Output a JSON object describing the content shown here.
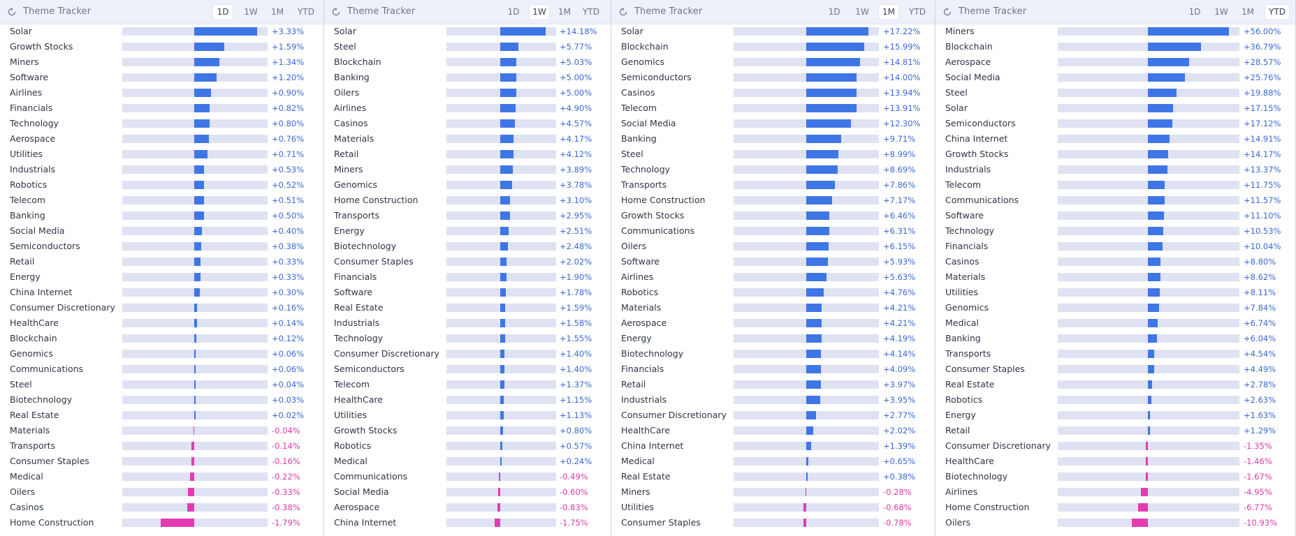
{
  "colors": {
    "positive_bar": "#3e76e6",
    "negative_bar": "#e33cb1",
    "positive_text": "#3a68d6",
    "negative_text": "#db3aa8",
    "track": "#dfe2f2",
    "header_bg": "#eef0fa"
  },
  "panels": [
    {
      "title": "Theme Tracker",
      "icon": "refresh-icon",
      "tabs": [
        "1D",
        "1W",
        "1M",
        "YTD"
      ],
      "active_tab": "1D",
      "max_abs": 3.33,
      "rows": [
        {
          "label": "Solar",
          "value": 3.33,
          "text": "+3.33%"
        },
        {
          "label": "Growth Stocks",
          "value": 1.59,
          "text": "+1.59%"
        },
        {
          "label": "Miners",
          "value": 1.34,
          "text": "+1.34%"
        },
        {
          "label": "Software",
          "value": 1.2,
          "text": "+1.20%"
        },
        {
          "label": "Airlines",
          "value": 0.9,
          "text": "+0.90%"
        },
        {
          "label": "Financials",
          "value": 0.82,
          "text": "+0.82%"
        },
        {
          "label": "Technology",
          "value": 0.8,
          "text": "+0.80%"
        },
        {
          "label": "Aerospace",
          "value": 0.76,
          "text": "+0.76%"
        },
        {
          "label": "Utilities",
          "value": 0.71,
          "text": "+0.71%"
        },
        {
          "label": "Industrials",
          "value": 0.53,
          "text": "+0.53%"
        },
        {
          "label": "Robotics",
          "value": 0.52,
          "text": "+0.52%"
        },
        {
          "label": "Telecom",
          "value": 0.51,
          "text": "+0.51%"
        },
        {
          "label": "Banking",
          "value": 0.5,
          "text": "+0.50%"
        },
        {
          "label": "Social Media",
          "value": 0.4,
          "text": "+0.40%"
        },
        {
          "label": "Semiconductors",
          "value": 0.38,
          "text": "+0.38%"
        },
        {
          "label": "Retail",
          "value": 0.33,
          "text": "+0.33%"
        },
        {
          "label": "Energy",
          "value": 0.33,
          "text": "+0.33%"
        },
        {
          "label": "China Internet",
          "value": 0.3,
          "text": "+0.30%"
        },
        {
          "label": "Consumer Discretionary",
          "value": 0.16,
          "text": "+0.16%"
        },
        {
          "label": "HealthCare",
          "value": 0.14,
          "text": "+0.14%"
        },
        {
          "label": "Blockchain",
          "value": 0.12,
          "text": "+0.12%"
        },
        {
          "label": "Genomics",
          "value": 0.06,
          "text": "+0.06%"
        },
        {
          "label": "Communications",
          "value": 0.06,
          "text": "+0.06%"
        },
        {
          "label": "Steel",
          "value": 0.04,
          "text": "+0.04%"
        },
        {
          "label": "Biotechnology",
          "value": 0.03,
          "text": "+0.03%"
        },
        {
          "label": "Real Estate",
          "value": 0.02,
          "text": "+0.02%"
        },
        {
          "label": "Materials",
          "value": -0.04,
          "text": "-0.04%"
        },
        {
          "label": "Transports",
          "value": -0.14,
          "text": "-0.14%"
        },
        {
          "label": "Consumer Staples",
          "value": -0.16,
          "text": "-0.16%"
        },
        {
          "label": "Medical",
          "value": -0.22,
          "text": "-0.22%"
        },
        {
          "label": "Oilers",
          "value": -0.33,
          "text": "-0.33%"
        },
        {
          "label": "Casinos",
          "value": -0.38,
          "text": "-0.38%"
        },
        {
          "label": "Home Construction",
          "value": -1.79,
          "text": "-1.79%"
        }
      ]
    },
    {
      "title": "Theme Tracker",
      "icon": "refresh-icon",
      "tabs": [
        "1D",
        "1W",
        "1M",
        "YTD"
      ],
      "active_tab": "1W",
      "max_abs": 14.18,
      "rows": [
        {
          "label": "Solar",
          "value": 14.18,
          "text": "+14.18%"
        },
        {
          "label": "Steel",
          "value": 5.77,
          "text": "+5.77%"
        },
        {
          "label": "Blockchain",
          "value": 5.03,
          "text": "+5.03%"
        },
        {
          "label": "Banking",
          "value": 5.0,
          "text": "+5.00%"
        },
        {
          "label": "Oilers",
          "value": 5.0,
          "text": "+5.00%"
        },
        {
          "label": "Airlines",
          "value": 4.9,
          "text": "+4.90%"
        },
        {
          "label": "Casinos",
          "value": 4.57,
          "text": "+4.57%"
        },
        {
          "label": "Materials",
          "value": 4.17,
          "text": "+4.17%"
        },
        {
          "label": "Retail",
          "value": 4.12,
          "text": "+4.12%"
        },
        {
          "label": "Miners",
          "value": 3.89,
          "text": "+3.89%"
        },
        {
          "label": "Genomics",
          "value": 3.78,
          "text": "+3.78%"
        },
        {
          "label": "Home Construction",
          "value": 3.1,
          "text": "+3.10%"
        },
        {
          "label": "Transports",
          "value": 2.95,
          "text": "+2.95%"
        },
        {
          "label": "Energy",
          "value": 2.51,
          "text": "+2.51%"
        },
        {
          "label": "Biotechnology",
          "value": 2.48,
          "text": "+2.48%"
        },
        {
          "label": "Consumer Staples",
          "value": 2.02,
          "text": "+2.02%"
        },
        {
          "label": "Financials",
          "value": 1.9,
          "text": "+1.90%"
        },
        {
          "label": "Software",
          "value": 1.78,
          "text": "+1.78%"
        },
        {
          "label": "Real Estate",
          "value": 1.59,
          "text": "+1.59%"
        },
        {
          "label": "Industrials",
          "value": 1.58,
          "text": "+1.58%"
        },
        {
          "label": "Technology",
          "value": 1.55,
          "text": "+1.55%"
        },
        {
          "label": "Consumer Discretionary",
          "value": 1.4,
          "text": "+1.40%"
        },
        {
          "label": "Semiconductors",
          "value": 1.4,
          "text": "+1.40%"
        },
        {
          "label": "Telecom",
          "value": 1.37,
          "text": "+1.37%"
        },
        {
          "label": "HealthCare",
          "value": 1.15,
          "text": "+1.15%"
        },
        {
          "label": "Utilities",
          "value": 1.13,
          "text": "+1.13%"
        },
        {
          "label": "Growth Stocks",
          "value": 0.8,
          "text": "+0.80%"
        },
        {
          "label": "Robotics",
          "value": 0.57,
          "text": "+0.57%"
        },
        {
          "label": "Medical",
          "value": 0.24,
          "text": "+0.24%"
        },
        {
          "label": "Communications",
          "value": -0.49,
          "text": "-0.49%"
        },
        {
          "label": "Social Media",
          "value": -0.6,
          "text": "-0.60%"
        },
        {
          "label": "Aerospace",
          "value": -0.83,
          "text": "-0.83%"
        },
        {
          "label": "China Internet",
          "value": -1.75,
          "text": "-1.75%"
        }
      ]
    },
    {
      "title": "Theme Tracker",
      "icon": "refresh-icon",
      "tabs": [
        "1D",
        "1W",
        "1M",
        "YTD"
      ],
      "active_tab": "1M",
      "max_abs": 17.22,
      "rows": [
        {
          "label": "Solar",
          "value": 17.22,
          "text": "+17.22%"
        },
        {
          "label": "Blockchain",
          "value": 15.99,
          "text": "+15.99%"
        },
        {
          "label": "Genomics",
          "value": 14.81,
          "text": "+14.81%"
        },
        {
          "label": "Semiconductors",
          "value": 14.0,
          "text": "+14.00%"
        },
        {
          "label": "Casinos",
          "value": 13.94,
          "text": "+13.94%"
        },
        {
          "label": "Telecom",
          "value": 13.91,
          "text": "+13.91%"
        },
        {
          "label": "Social Media",
          "value": 12.3,
          "text": "+12.30%"
        },
        {
          "label": "Banking",
          "value": 9.71,
          "text": "+9.71%"
        },
        {
          "label": "Steel",
          "value": 8.99,
          "text": "+8.99%"
        },
        {
          "label": "Technology",
          "value": 8.69,
          "text": "+8.69%"
        },
        {
          "label": "Transports",
          "value": 7.86,
          "text": "+7.86%"
        },
        {
          "label": "Home Construction",
          "value": 7.17,
          "text": "+7.17%"
        },
        {
          "label": "Growth Stocks",
          "value": 6.46,
          "text": "+6.46%"
        },
        {
          "label": "Communications",
          "value": 6.31,
          "text": "+6.31%"
        },
        {
          "label": "Oilers",
          "value": 6.15,
          "text": "+6.15%"
        },
        {
          "label": "Software",
          "value": 5.93,
          "text": "+5.93%"
        },
        {
          "label": "Airlines",
          "value": 5.63,
          "text": "+5.63%"
        },
        {
          "label": "Robotics",
          "value": 4.76,
          "text": "+4.76%"
        },
        {
          "label": "Materials",
          "value": 4.21,
          "text": "+4.21%"
        },
        {
          "label": "Aerospace",
          "value": 4.21,
          "text": "+4.21%"
        },
        {
          "label": "Energy",
          "value": 4.19,
          "text": "+4.19%"
        },
        {
          "label": "Biotechnology",
          "value": 4.14,
          "text": "+4.14%"
        },
        {
          "label": "Financials",
          "value": 4.09,
          "text": "+4.09%"
        },
        {
          "label": "Retail",
          "value": 3.97,
          "text": "+3.97%"
        },
        {
          "label": "Industrials",
          "value": 3.95,
          "text": "+3.95%"
        },
        {
          "label": "Consumer Discretionary",
          "value": 2.77,
          "text": "+2.77%"
        },
        {
          "label": "HealthCare",
          "value": 2.02,
          "text": "+2.02%"
        },
        {
          "label": "China Internet",
          "value": 1.39,
          "text": "+1.39%"
        },
        {
          "label": "Medical",
          "value": 0.65,
          "text": "+0.65%"
        },
        {
          "label": "Real Estate",
          "value": 0.38,
          "text": "+0.38%"
        },
        {
          "label": "Miners",
          "value": -0.28,
          "text": "-0.28%"
        },
        {
          "label": "Utilities",
          "value": -0.68,
          "text": "-0.68%"
        },
        {
          "label": "Consumer Staples",
          "value": -0.78,
          "text": "-0.78%"
        }
      ]
    },
    {
      "title": "Theme Tracker",
      "icon": "refresh-icon",
      "tabs": [
        "1D",
        "1W",
        "1M",
        "YTD"
      ],
      "active_tab": "YTD",
      "max_abs": 56.0,
      "rows": [
        {
          "label": "Miners",
          "value": 56.0,
          "text": "+56.00%"
        },
        {
          "label": "Blockchain",
          "value": 36.79,
          "text": "+36.79%"
        },
        {
          "label": "Aerospace",
          "value": 28.57,
          "text": "+28.57%"
        },
        {
          "label": "Social Media",
          "value": 25.76,
          "text": "+25.76%"
        },
        {
          "label": "Steel",
          "value": 19.88,
          "text": "+19.88%"
        },
        {
          "label": "Solar",
          "value": 17.15,
          "text": "+17.15%"
        },
        {
          "label": "Semiconductors",
          "value": 17.12,
          "text": "+17.12%"
        },
        {
          "label": "China Internet",
          "value": 14.91,
          "text": "+14.91%"
        },
        {
          "label": "Growth Stocks",
          "value": 14.17,
          "text": "+14.17%"
        },
        {
          "label": "Industrials",
          "value": 13.37,
          "text": "+13.37%"
        },
        {
          "label": "Telecom",
          "value": 11.75,
          "text": "+11.75%"
        },
        {
          "label": "Communications",
          "value": 11.57,
          "text": "+11.57%"
        },
        {
          "label": "Software",
          "value": 11.1,
          "text": "+11.10%"
        },
        {
          "label": "Technology",
          "value": 10.53,
          "text": "+10.53%"
        },
        {
          "label": "Financials",
          "value": 10.04,
          "text": "+10.04%"
        },
        {
          "label": "Casinos",
          "value": 8.8,
          "text": "+8.80%"
        },
        {
          "label": "Materials",
          "value": 8.62,
          "text": "+8.62%"
        },
        {
          "label": "Utilities",
          "value": 8.11,
          "text": "+8.11%"
        },
        {
          "label": "Genomics",
          "value": 7.84,
          "text": "+7.84%"
        },
        {
          "label": "Medical",
          "value": 6.74,
          "text": "+6.74%"
        },
        {
          "label": "Banking",
          "value": 6.04,
          "text": "+6.04%"
        },
        {
          "label": "Transports",
          "value": 4.54,
          "text": "+4.54%"
        },
        {
          "label": "Consumer Staples",
          "value": 4.49,
          "text": "+4.49%"
        },
        {
          "label": "Real Estate",
          "value": 2.78,
          "text": "+2.78%"
        },
        {
          "label": "Robotics",
          "value": 2.63,
          "text": "+2.63%"
        },
        {
          "label": "Energy",
          "value": 1.63,
          "text": "+1.63%"
        },
        {
          "label": "Retail",
          "value": 1.29,
          "text": "+1.29%"
        },
        {
          "label": "Consumer Discretionary",
          "value": -1.35,
          "text": "-1.35%"
        },
        {
          "label": "HealthCare",
          "value": -1.46,
          "text": "-1.46%"
        },
        {
          "label": "Biotechnology",
          "value": -1.67,
          "text": "-1.67%"
        },
        {
          "label": "Airlines",
          "value": -4.95,
          "text": "-4.95%"
        },
        {
          "label": "Home Construction",
          "value": -6.77,
          "text": "-6.77%"
        },
        {
          "label": "Oilers",
          "value": -10.93,
          "text": "-10.93%"
        }
      ]
    }
  ]
}
